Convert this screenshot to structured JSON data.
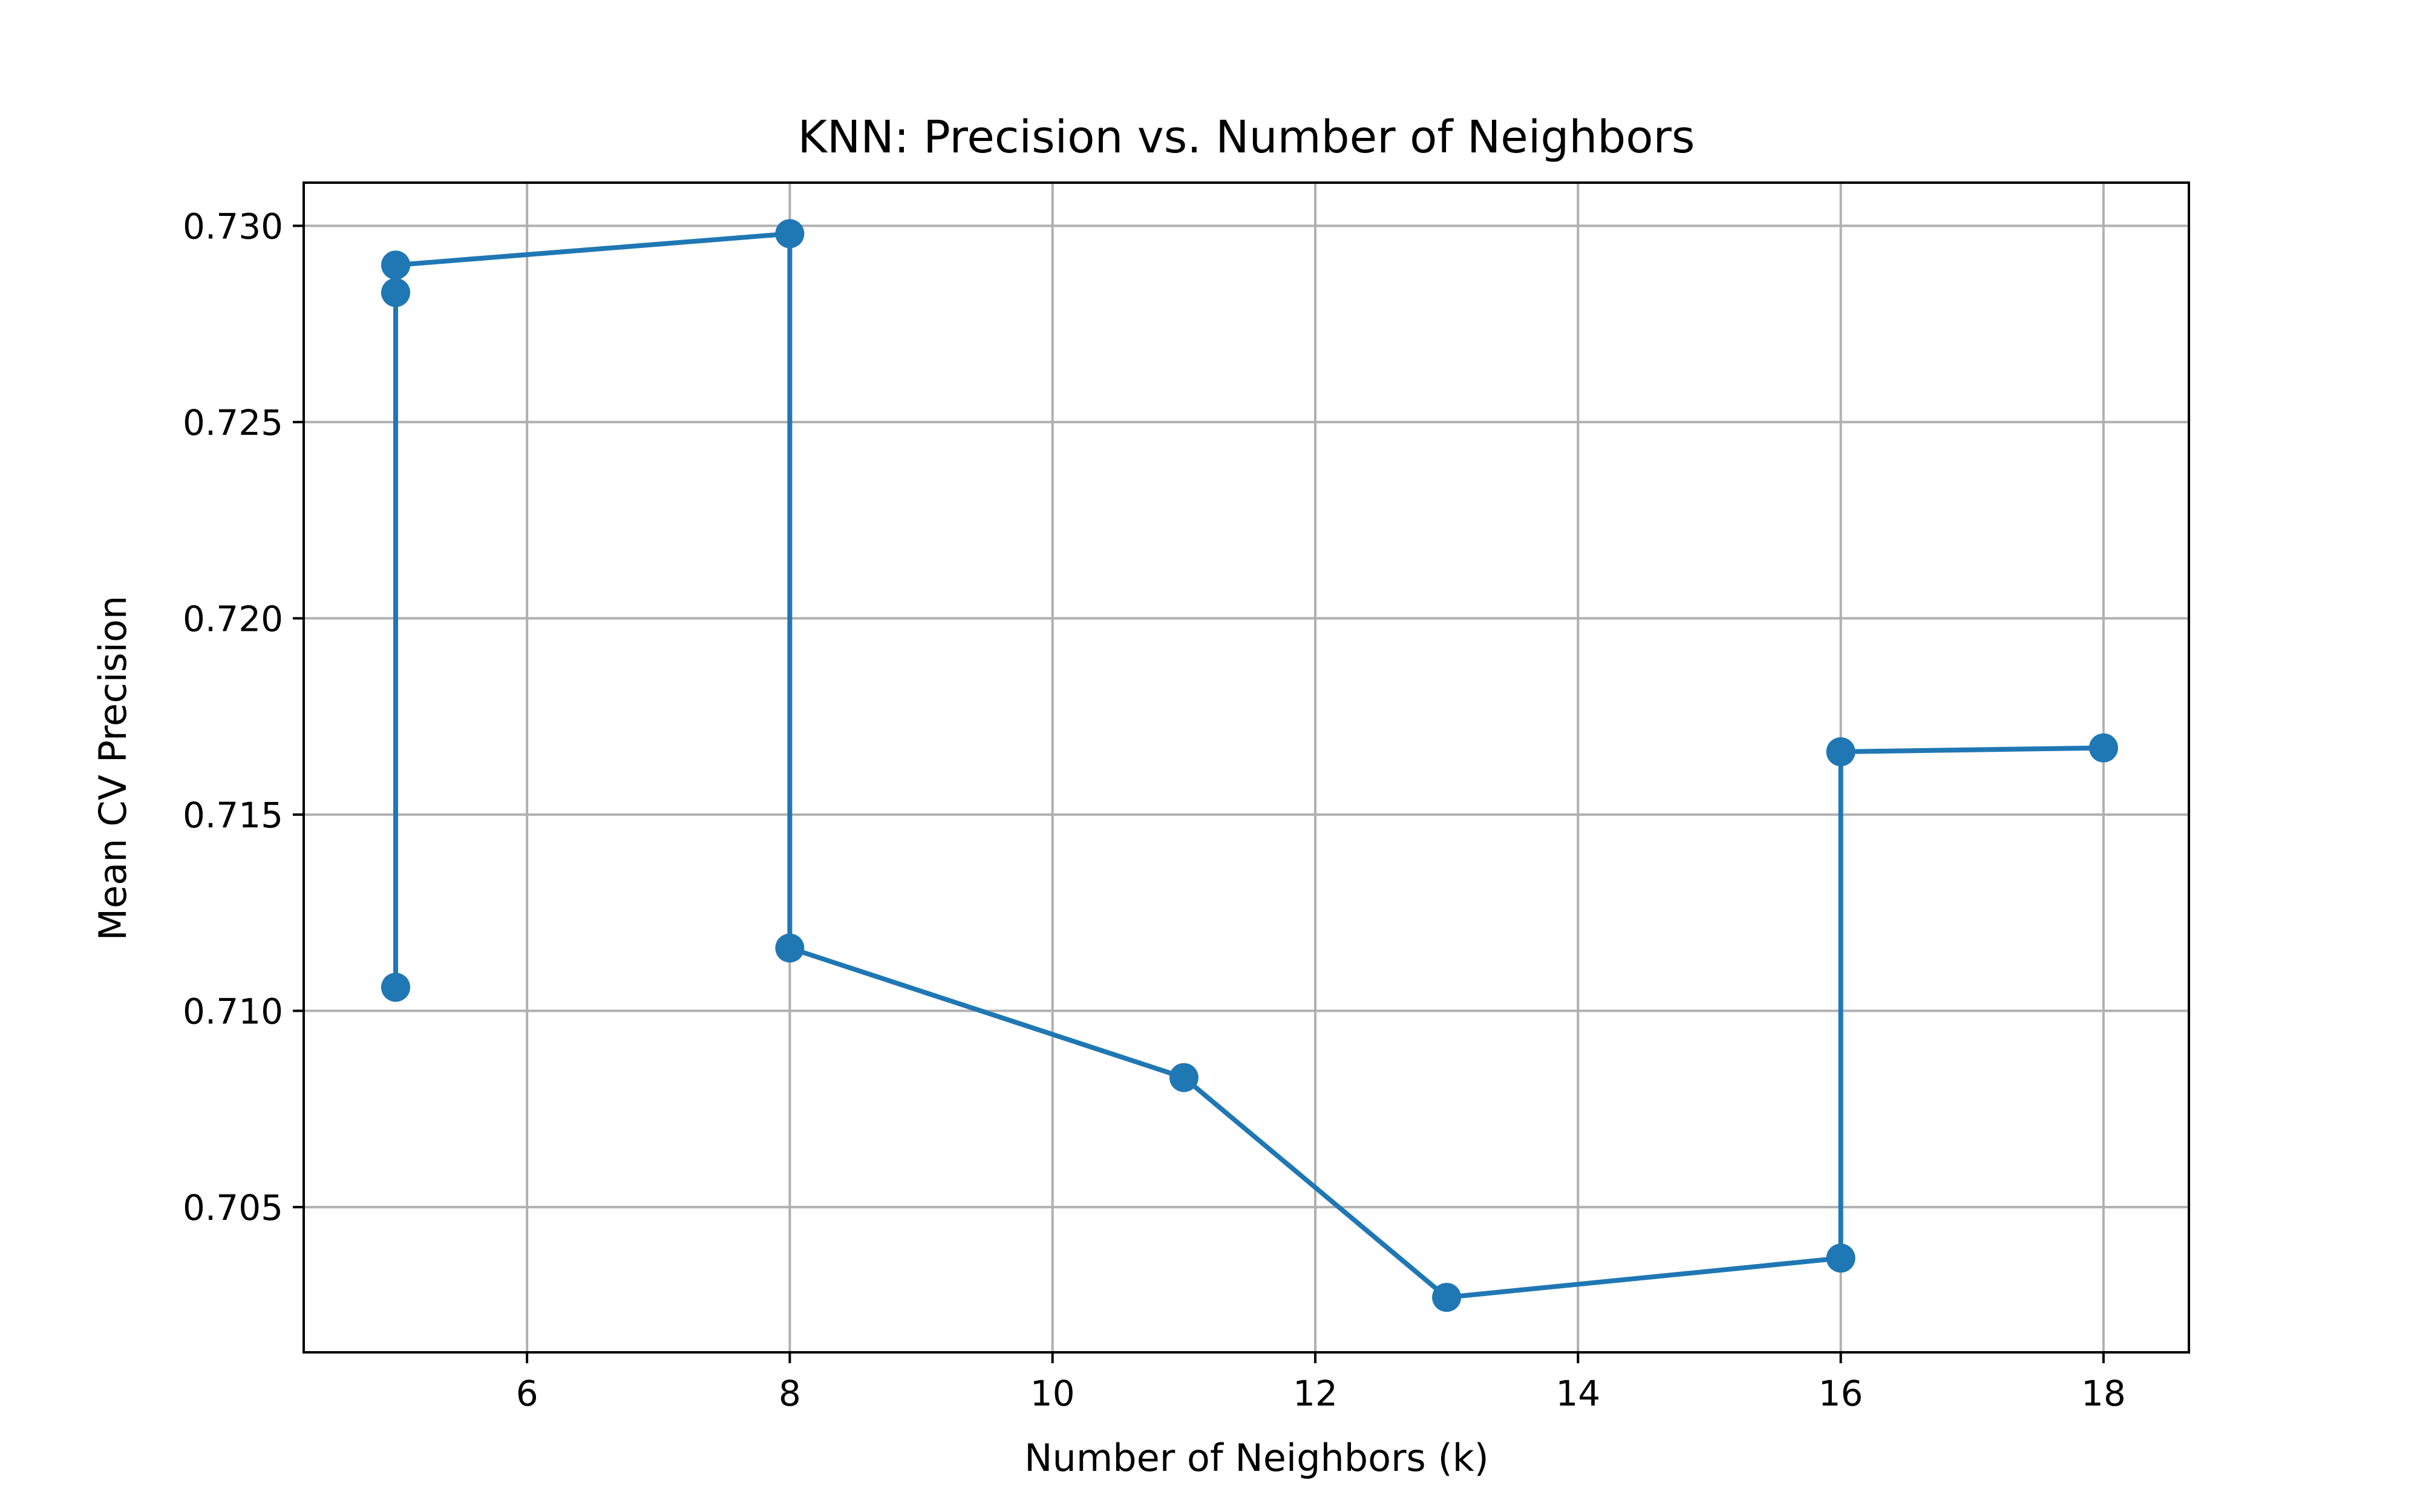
{
  "chart_data": {
    "type": "line",
    "title": "KNN: Precision vs. Number of Neighbors",
    "xlabel": "Number of Neighbors (k)",
    "ylabel": "Mean CV Precision",
    "xlim": [
      4.3,
      18.65
    ],
    "ylim": [
      0.7013,
      0.7311
    ],
    "xticks": [
      6,
      8,
      10,
      12,
      14,
      16,
      18
    ],
    "yticks": [
      0.705,
      0.71,
      0.715,
      0.72,
      0.725,
      0.73
    ],
    "xtick_labels": [
      "6",
      "8",
      "10",
      "12",
      "14",
      "16",
      "18"
    ],
    "ytick_labels": [
      "0.705",
      "0.710",
      "0.715",
      "0.720",
      "0.725",
      "0.730"
    ],
    "grid": true,
    "legend": "none",
    "series": [
      {
        "color": "#1f77b4",
        "marker": "circle",
        "x": [
          5,
          5,
          5,
          8,
          8,
          11,
          13,
          16,
          16,
          18
        ],
        "y": [
          0.7106,
          0.7283,
          0.729,
          0.7298,
          0.7116,
          0.7083,
          0.7027,
          0.7037,
          0.7166,
          0.7167
        ]
      }
    ]
  }
}
